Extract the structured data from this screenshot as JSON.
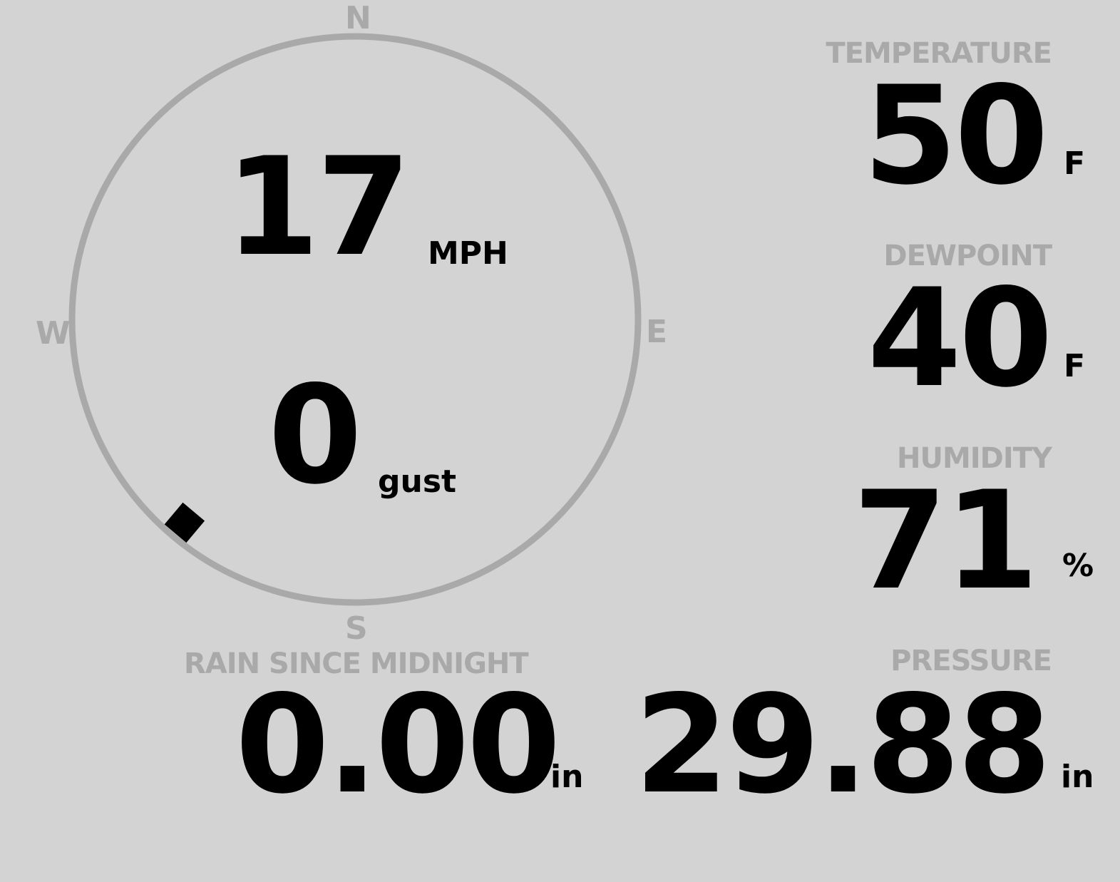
{
  "compass": {
    "north": "N",
    "south": "S",
    "east": "E",
    "west": "W",
    "wind_direction_deg": 220,
    "ring_color": "#a9a9a9"
  },
  "wind": {
    "speed": "17",
    "speed_unit": "MPH",
    "gust": "0",
    "gust_unit": "gust"
  },
  "temperature": {
    "label": "TEMPERATURE",
    "value": "50",
    "unit": "F"
  },
  "dewpoint": {
    "label": "DEWPOINT",
    "value": "40",
    "unit": "F"
  },
  "humidity": {
    "label": "HUMIDITY",
    "value": "71",
    "unit": "%"
  },
  "rain": {
    "label": "RAIN SINCE MIDNIGHT",
    "value": "0.00",
    "unit": "in"
  },
  "pressure": {
    "label": "PRESSURE",
    "value": "29.88",
    "unit": "in"
  },
  "colors": {
    "background": "#d3d3d3",
    "label": "#a9a9a9",
    "value": "#000000"
  }
}
